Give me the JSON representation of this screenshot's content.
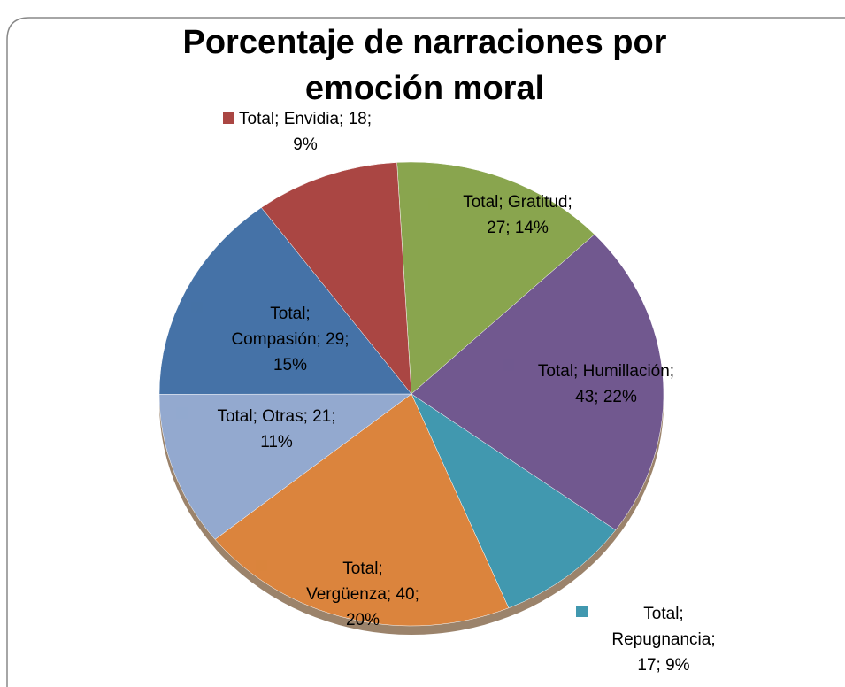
{
  "chart_data": {
    "type": "pie",
    "title": "Porcentaje de narraciones por emoción moral",
    "values": [
      27,
      43,
      17,
      40,
      21,
      29,
      18
    ],
    "value_labels": [
      "Total; Gratitud; 27; 14%",
      "Total; Humillación; 43; 22%",
      "Total; Repugnancia; 17; 9%",
      "Total; Vergüenza; 40; 20%",
      "Total; Otras; 21; 11%",
      "Total; Compasión; 29; 15%",
      "Total; Envidia; 18; 9%"
    ],
    "colors": [
      "#89a54e",
      "#71588f",
      "#4198af",
      "#db843d",
      "#93a9cf",
      "#4572a7",
      "#aa4643"
    ]
  }
}
